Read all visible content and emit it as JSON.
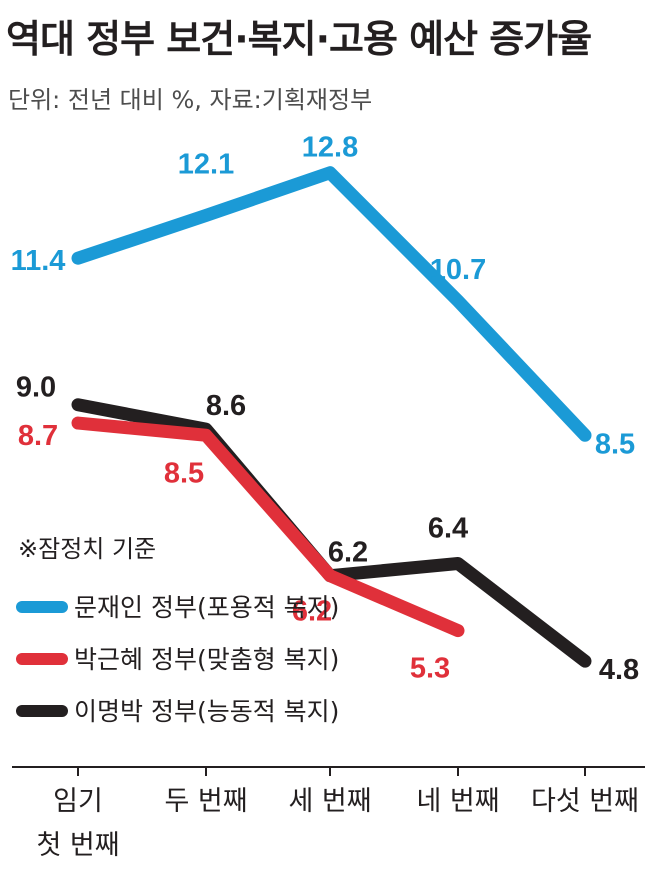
{
  "title": "역대 정부 보건·복지·고용 예산 증가율",
  "subtitle": "단위: 전년 대비 %, 자료:기획재정부",
  "note": "※잠정치 기준",
  "chart_data": {
    "type": "line",
    "categories": [
      [
        "임기",
        "첫 번째"
      ],
      [
        "두 번째"
      ],
      [
        "세 번째"
      ],
      [
        "네 번째"
      ],
      [
        "다섯 번째"
      ]
    ],
    "ylabel": "전년 대비 %",
    "ylim": [
      4,
      13.5
    ],
    "grid": false,
    "legend_position": "left",
    "series": [
      {
        "name": "문재인 정부(포용적 복지)",
        "color": "#1b9ad6",
        "values": [
          11.4,
          12.1,
          12.8,
          10.7,
          8.5
        ],
        "labels": [
          "11.4",
          "12.1",
          "12.8",
          "10.7",
          "8.5"
        ]
      },
      {
        "name": "박근혜 정부(맞춤형 복지)",
        "color": "#e0303a",
        "values": [
          8.7,
          8.5,
          6.2,
          5.3,
          null
        ],
        "labels": [
          "8.7",
          "8.5",
          "6.2",
          "5.3",
          null
        ]
      },
      {
        "name": "이명박 정부(능동적 복지)",
        "color": "#231f20",
        "values": [
          9.0,
          8.6,
          6.2,
          6.4,
          4.8
        ],
        "labels": [
          "9.0",
          "8.6",
          "6.2",
          "6.4",
          "4.8"
        ]
      }
    ]
  }
}
